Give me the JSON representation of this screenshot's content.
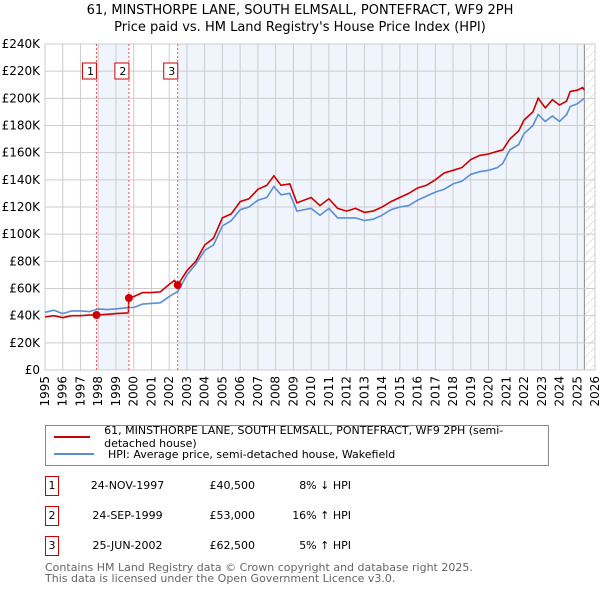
{
  "title_line1": "61, MINSTHORPE LANE, SOUTH ELMSALL, PONTEFRACT, WF9 2PH",
  "title_line2": "Price paid vs. HM Land Registry's House Price Index (HPI)",
  "chart_data": {
    "type": "line",
    "xlim": [
      1995,
      2026
    ],
    "ylim": [
      0,
      240000
    ],
    "yticks": [
      0,
      20000,
      40000,
      60000,
      80000,
      100000,
      120000,
      140000,
      160000,
      180000,
      200000,
      220000,
      240000
    ],
    "ytick_labels": [
      "£0",
      "£20K",
      "£40K",
      "£60K",
      "£80K",
      "£100K",
      "£120K",
      "£140K",
      "£160K",
      "£180K",
      "£200K",
      "£220K",
      "£240K"
    ],
    "xticks": [
      1995,
      1996,
      1997,
      1998,
      1999,
      2000,
      2001,
      2002,
      2003,
      2004,
      2005,
      2006,
      2007,
      2008,
      2009,
      2010,
      2011,
      2012,
      2013,
      2014,
      2015,
      2016,
      2017,
      2018,
      2019,
      2020,
      2021,
      2022,
      2023,
      2024,
      2025,
      2026
    ],
    "grid": true,
    "hatched_from": 2025.4,
    "series": [
      {
        "name": "61, MINSTHORPE LANE, SOUTH ELMSALL, PONTEFRACT, WF9 2PH (semi-detached house)",
        "color": "#cc0000",
        "x": [
          1995,
          1995.5,
          1996,
          1996.5,
          1997,
          1997.5,
          1997.9,
          1998.5,
          1999,
          1999.7,
          1999.73,
          2000,
          2000.5,
          2001,
          2001.5,
          2002,
          2002.3,
          2002.48,
          2003,
          2003.5,
          2004,
          2004.5,
          2005,
          2005.5,
          2006,
          2006.5,
          2007,
          2007.5,
          2007.9,
          2008.3,
          2008.8,
          2009.2,
          2010,
          2010.5,
          2011,
          2011.5,
          2012,
          2012.5,
          2013,
          2013.5,
          2014,
          2014.5,
          2015,
          2015.5,
          2016,
          2016.5,
          2017,
          2017.5,
          2018,
          2018.5,
          2019,
          2019.5,
          2020,
          2020.5,
          2020.8,
          2021.2,
          2021.7,
          2022,
          2022.5,
          2022.8,
          2023.2,
          2023.6,
          2024,
          2024.4,
          2024.6,
          2025,
          2025.3,
          2025.4
        ],
        "y": [
          39000,
          40000,
          38500,
          40000,
          40000,
          40500,
          40500,
          41000,
          41500,
          42000,
          53000,
          54000,
          57000,
          57000,
          57500,
          63000,
          66000,
          62500,
          73000,
          80000,
          92000,
          97000,
          112000,
          115000,
          124000,
          126000,
          133000,
          136000,
          143000,
          136000,
          137000,
          123000,
          127000,
          121000,
          126000,
          119000,
          117000,
          119000,
          116000,
          117000,
          120000,
          124000,
          127000,
          130000,
          134000,
          136000,
          140000,
          145000,
          147000,
          149000,
          155000,
          158000,
          159000,
          161000,
          162000,
          170000,
          176000,
          184000,
          190000,
          200000,
          193000,
          199000,
          195000,
          198000,
          205000,
          206000,
          208000,
          206000
        ]
      },
      {
        "name": "HPI: Average price, semi-detached house, Wakefield",
        "color": "#5b8fd1",
        "x": [
          1995,
          1995.5,
          1996,
          1996.5,
          1997,
          1997.5,
          1998,
          1998.5,
          1999,
          1999.7,
          2000,
          2000.5,
          2001,
          2001.5,
          2002,
          2002.5,
          2003,
          2003.5,
          2004,
          2004.5,
          2005,
          2005.5,
          2006,
          2006.5,
          2007,
          2007.5,
          2007.9,
          2008.3,
          2008.8,
          2009.2,
          2010,
          2010.5,
          2011,
          2011.5,
          2012,
          2012.5,
          2013,
          2013.5,
          2014,
          2014.5,
          2015,
          2015.5,
          2016,
          2016.5,
          2017,
          2017.5,
          2018,
          2018.5,
          2019,
          2019.5,
          2020,
          2020.5,
          2020.8,
          2021.2,
          2021.7,
          2022,
          2022.5,
          2022.8,
          2023.2,
          2023.6,
          2024,
          2024.4,
          2024.6,
          2025,
          2025.4
        ],
        "y": [
          42500,
          44000,
          41500,
          43500,
          43500,
          43000,
          45000,
          44500,
          45000,
          46000,
          46000,
          48500,
          49000,
          49500,
          54000,
          58000,
          70000,
          78000,
          88000,
          92000,
          106000,
          110000,
          118000,
          120000,
          125000,
          127000,
          135000,
          129000,
          130000,
          117000,
          119000,
          114000,
          119000,
          112000,
          112000,
          112000,
          110000,
          111000,
          114000,
          118000,
          120000,
          121000,
          125000,
          128000,
          131000,
          133000,
          137000,
          139000,
          144000,
          146000,
          147000,
          149000,
          152000,
          162000,
          166000,
          174000,
          180000,
          188000,
          183000,
          187000,
          183000,
          188000,
          194000,
          196000,
          200000
        ]
      }
    ],
    "sales": [
      {
        "label": "1",
        "x": 1997.9,
        "y": 40500
      },
      {
        "label": "2",
        "x": 1999.73,
        "y": 53000
      },
      {
        "label": "3",
        "x": 2002.48,
        "y": 62500
      }
    ]
  },
  "legend": {
    "red": "61, MINSTHORPE LANE, SOUTH ELMSALL, PONTEFRACT, WF9 2PH (semi-detached house)",
    "blue": "HPI: Average price, semi-detached house, Wakefield"
  },
  "transactions": [
    {
      "num": "1",
      "date": "24-NOV-1997",
      "price": "£40,500",
      "hpi": "8% ↓ HPI"
    },
    {
      "num": "2",
      "date": "24-SEP-1999",
      "price": "£53,000",
      "hpi": "16% ↑ HPI"
    },
    {
      "num": "3",
      "date": "25-JUN-2002",
      "price": "£62,500",
      "hpi": "5% ↑ HPI"
    }
  ],
  "footer": {
    "line1": "Contains HM Land Registry data © Crown copyright and database right 2025.",
    "line2": "This data is licensed under the Open Government Licence v3.0."
  }
}
